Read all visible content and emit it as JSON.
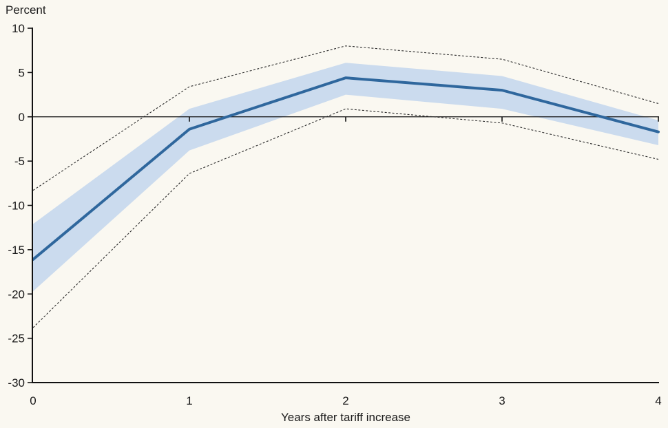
{
  "chart_data": {
    "type": "line",
    "title": "",
    "ylabel": "Percent",
    "xlabel": "Years after tariff increase",
    "x": [
      0,
      1,
      2,
      3,
      4
    ],
    "series": [
      {
        "name": "central-estimate",
        "values": [
          -16.1,
          -1.4,
          4.4,
          3.0,
          -1.7
        ]
      },
      {
        "name": "inner-band-upper",
        "values": [
          -12.1,
          0.9,
          6.1,
          4.6,
          -0.4
        ]
      },
      {
        "name": "inner-band-lower",
        "values": [
          -19.7,
          -3.8,
          2.5,
          0.9,
          -3.2
        ]
      },
      {
        "name": "outer-band-upper",
        "values": [
          -8.3,
          3.4,
          8.0,
          6.5,
          1.5
        ]
      },
      {
        "name": "outer-band-lower",
        "values": [
          -23.8,
          -6.4,
          0.9,
          -0.7,
          -4.8
        ]
      }
    ],
    "xticks": [
      0,
      1,
      2,
      3,
      4
    ],
    "yticks": [
      10,
      5,
      0,
      -5,
      -10,
      -15,
      -20,
      -25,
      -30
    ],
    "xlim": [
      0,
      4
    ],
    "ylim": [
      -30,
      10
    ],
    "grid": false,
    "legend": "none",
    "zero_line": true,
    "band_style": {
      "inner": "filled",
      "outer": "dashed"
    },
    "colors": {
      "background": "#faf8f1",
      "central_line": "#2f679d",
      "inner_band_fill": "#cbdbee",
      "outer_band_line": "#2a2a2a",
      "axis": "#111111",
      "text": "#1a1a1a"
    }
  }
}
